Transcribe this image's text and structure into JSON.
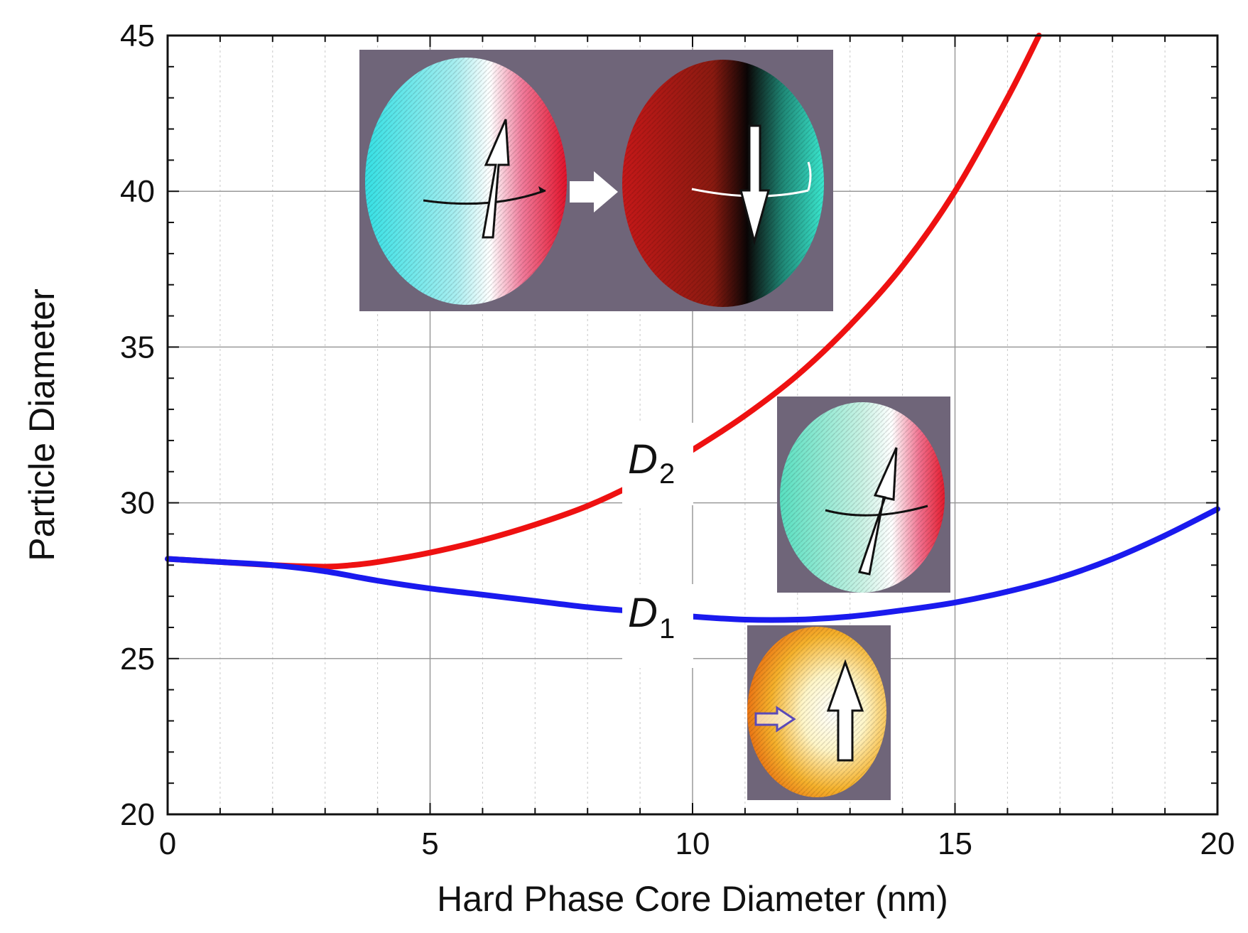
{
  "chart_data": {
    "type": "line",
    "xlabel": "Hard Phase Core Diameter (nm)",
    "ylabel": "Particle Diameter",
    "xlim": [
      0,
      20
    ],
    "ylim": [
      20,
      45
    ],
    "xticks": [
      0,
      5,
      10,
      15,
      20
    ],
    "yticks": [
      20,
      25,
      30,
      35,
      40,
      45
    ],
    "x_minor_step": 1,
    "y_minor_step": 1,
    "grid": true,
    "legend": "none",
    "series": [
      {
        "name": "D2",
        "color": "#ee1111",
        "x": [
          0,
          1,
          2,
          3,
          3.5,
          4,
          5,
          6,
          7,
          8,
          9,
          10,
          11,
          12,
          13,
          14,
          15,
          16,
          16.6
        ],
        "y": [
          28.2,
          28.1,
          28.0,
          27.95,
          28.0,
          28.1,
          28.4,
          28.8,
          29.3,
          29.9,
          30.7,
          31.7,
          32.8,
          34.1,
          35.7,
          37.6,
          40.0,
          43.0,
          45.0
        ]
      },
      {
        "name": "D1",
        "color": "#1a1aee",
        "x": [
          0,
          1,
          2,
          3,
          4,
          5,
          6,
          7,
          8,
          9,
          10,
          11,
          12,
          13,
          14,
          15,
          16,
          17,
          18,
          19,
          20
        ],
        "y": [
          28.2,
          28.1,
          28.0,
          27.8,
          27.5,
          27.25,
          27.05,
          26.85,
          26.65,
          26.5,
          26.35,
          26.25,
          26.25,
          26.35,
          26.55,
          26.8,
          27.15,
          27.6,
          28.2,
          28.95,
          29.8
        ]
      }
    ],
    "annotations": [
      {
        "main": "D",
        "sub": "2",
        "x": 9.3,
        "y": 30.8
      },
      {
        "main": "D",
        "sub": "1",
        "x": 9.3,
        "y": 26.0
      }
    ]
  },
  "insets": [
    {
      "description": "magnetization-texture-pair",
      "background": "#6f6579"
    },
    {
      "description": "magnetization-texture-curling",
      "background": "#6f6579"
    },
    {
      "description": "magnetization-texture-uniform",
      "background": "#6f6579"
    }
  ]
}
